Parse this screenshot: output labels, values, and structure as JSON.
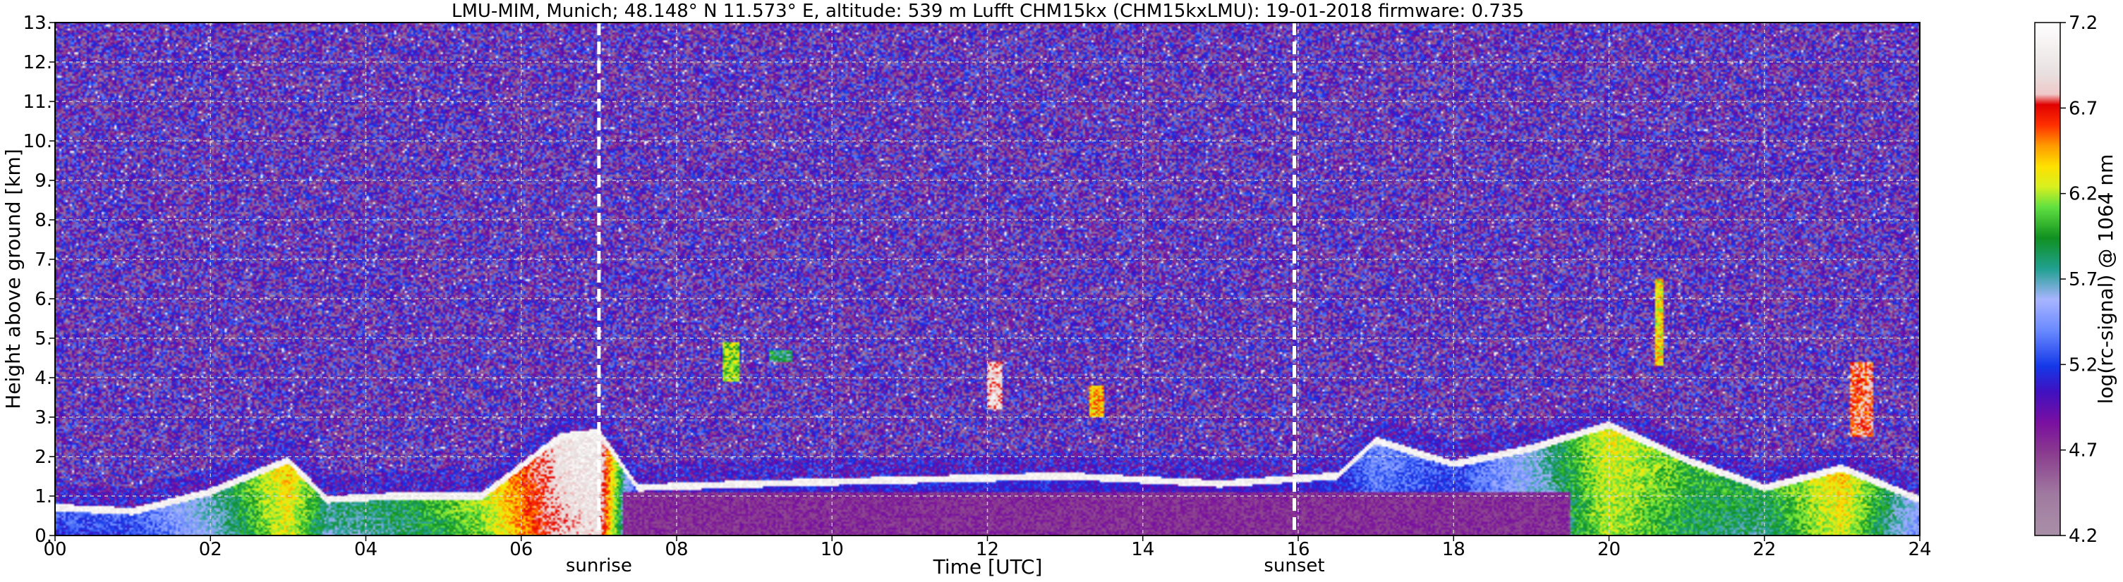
{
  "chart_data": {
    "type": "heatmap",
    "title": "LMU-MIM, Munich; 48.148° N 11.573° E, altitude: 539 m    Lufft CHM15kx (CHM15kxLMU): 19-01-2018    firmware: 0.735",
    "xlabel": "Time [UTC]",
    "ylabel": "Height above ground [km]",
    "xlim": [
      0,
      24
    ],
    "ylim": [
      0,
      13
    ],
    "x_ticks": [
      "00",
      "02",
      "04",
      "06",
      "08",
      "10",
      "12",
      "14",
      "16",
      "18",
      "20",
      "22",
      "24"
    ],
    "y_ticks": [
      "0.",
      "1.",
      "2.",
      "3.",
      "4.",
      "5.",
      "6.",
      "7.",
      "8.",
      "9.",
      "10.",
      "11.",
      "12.",
      "13."
    ],
    "grid": true,
    "colorbar": {
      "label": "log(rc-signal) @ 1064 nm",
      "range": [
        4.2,
        7.2
      ],
      "ticks": [
        "4.2",
        "4.7",
        "5.2",
        "5.7",
        "6.2",
        "6.7",
        "7.2"
      ]
    },
    "annotations": [
      {
        "label": "sunrise",
        "x": 7.0
      },
      {
        "label": "sunset",
        "x": 15.95
      }
    ],
    "background_level": 4.9,
    "boundary_layer": [
      {
        "t": 0.0,
        "top": 0.8,
        "aerosol": 5.3
      },
      {
        "t": 1.0,
        "top": 0.7,
        "aerosol": 5.3
      },
      {
        "t": 2.0,
        "top": 1.2,
        "aerosol": 5.7
      },
      {
        "t": 3.0,
        "top": 2.0,
        "aerosol": 6.4
      },
      {
        "t": 3.5,
        "top": 1.0,
        "aerosol": 5.8
      },
      {
        "t": 4.5,
        "top": 1.1,
        "aerosol": 5.9
      },
      {
        "t": 5.5,
        "top": 1.1,
        "aerosol": 6.2
      },
      {
        "t": 6.5,
        "top": 2.6,
        "aerosol": 7.0
      },
      {
        "t": 7.0,
        "top": 2.7,
        "aerosol": 7.1
      },
      {
        "t": 7.5,
        "top": 1.3,
        "aerosol": 5.0
      },
      {
        "t": 9.0,
        "top": 1.4,
        "aerosol": 5.1
      },
      {
        "t": 11.0,
        "top": 1.5,
        "aerosol": 5.1
      },
      {
        "t": 13.0,
        "top": 1.6,
        "aerosol": 5.1
      },
      {
        "t": 15.0,
        "top": 1.4,
        "aerosol": 5.0
      },
      {
        "t": 16.5,
        "top": 1.6,
        "aerosol": 5.1
      },
      {
        "t": 17.0,
        "top": 2.5,
        "aerosol": 5.4
      },
      {
        "t": 18.0,
        "top": 1.9,
        "aerosol": 5.2
      },
      {
        "t": 19.0,
        "top": 2.3,
        "aerosol": 5.6
      },
      {
        "t": 20.0,
        "top": 2.9,
        "aerosol": 6.3
      },
      {
        "t": 21.0,
        "top": 2.0,
        "aerosol": 6.0
      },
      {
        "t": 22.0,
        "top": 1.3,
        "aerosol": 5.9
      },
      {
        "t": 23.0,
        "top": 1.8,
        "aerosol": 6.4
      },
      {
        "t": 24.0,
        "top": 1.0,
        "aerosol": 5.5
      }
    ],
    "cloud_features": [
      {
        "t0": 8.6,
        "t1": 8.8,
        "z0": 3.9,
        "z1": 4.9,
        "value": 6.1
      },
      {
        "t0": 9.2,
        "t1": 9.5,
        "z0": 4.4,
        "z1": 4.7,
        "value": 5.8
      },
      {
        "t0": 12.0,
        "t1": 12.2,
        "z0": 3.2,
        "z1": 4.4,
        "value": 6.9
      },
      {
        "t0": 13.3,
        "t1": 13.5,
        "z0": 3.0,
        "z1": 3.8,
        "value": 6.4
      },
      {
        "t0": 20.6,
        "t1": 20.7,
        "z0": 4.3,
        "z1": 6.5,
        "value": 6.3
      },
      {
        "t0": 23.1,
        "t1": 23.4,
        "z0": 2.5,
        "z1": 4.4,
        "value": 6.7
      }
    ]
  }
}
